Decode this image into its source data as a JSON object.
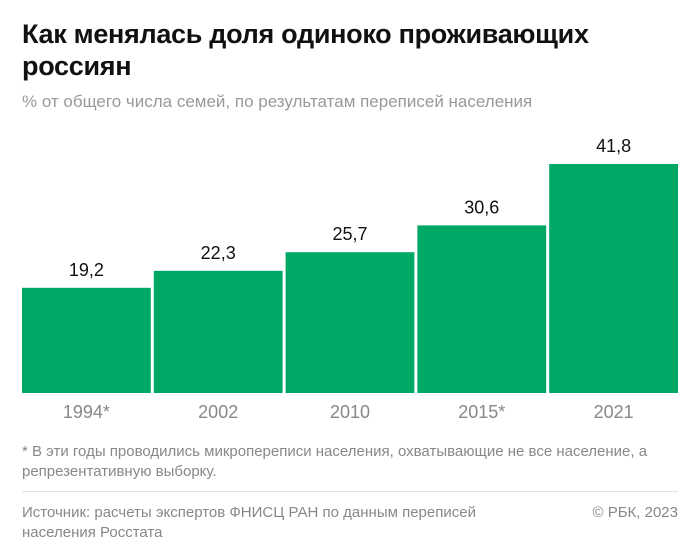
{
  "header": {
    "title": "Как менялась доля одиноко проживающих россиян",
    "subtitle": "% от общего числа семей, по результатам переписей населения"
  },
  "chart_data": {
    "type": "bar",
    "categories": [
      "1994*",
      "2002",
      "2010",
      "2015*",
      "2021"
    ],
    "values": [
      19.2,
      22.3,
      25.7,
      30.6,
      41.8
    ],
    "value_labels": [
      "19,2",
      "22,3",
      "25,7",
      "30,6",
      "41,8"
    ],
    "ylim": [
      0,
      45
    ],
    "grid": false,
    "bar_color": "#00A865"
  },
  "footer": {
    "note": "* В эти годы проводились микропереписи населения, охватывающие не все население, а репрезентативную выборку.",
    "source": "Источник: расчеты экспертов ФНИСЦ РАН по данным переписей населения Росстата",
    "copyright": "© РБК, 2023"
  }
}
